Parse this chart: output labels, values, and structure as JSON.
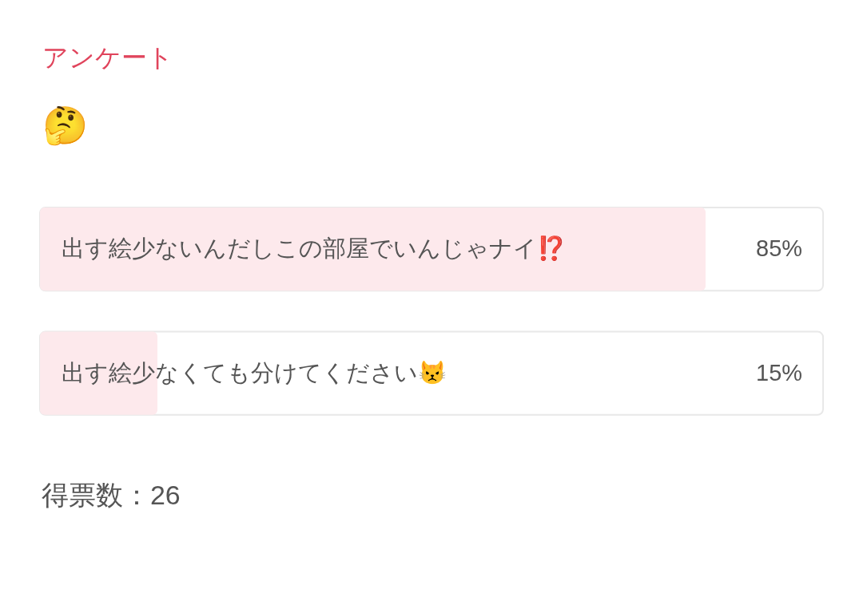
{
  "chart_data": {
    "type": "bar",
    "orientation": "horizontal",
    "title": "アンケート",
    "subtitle": "🤔",
    "categories": [
      "出す絵少ないんだしこの部屋でいんじゃナイ⁉️",
      "出す絵少なくても分けてください😾"
    ],
    "values": [
      85,
      15
    ],
    "value_labels": [
      "85%",
      "15%"
    ],
    "color": "#fde9ec",
    "xlim": [
      0,
      100
    ],
    "tick_labels": "y",
    "annotations": [
      "得票数：26"
    ]
  }
}
